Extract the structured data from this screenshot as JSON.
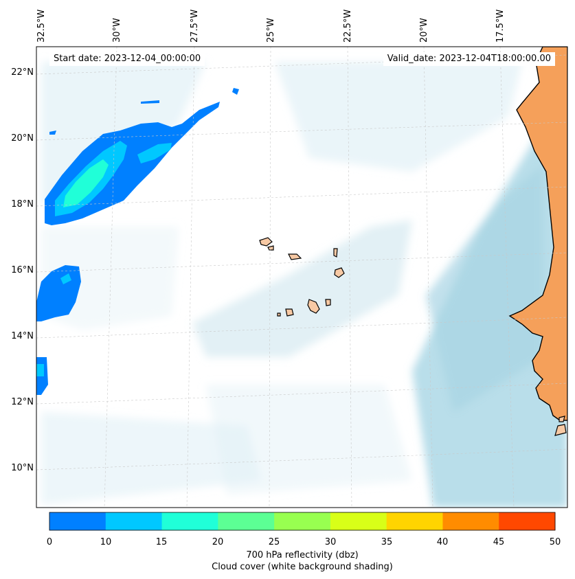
{
  "map": {
    "start_date": "Start date: 2023-12-04_00:00:00",
    "valid_date": "Valid_date: 2023-12-04T18:00:00.00",
    "lon_labels": [
      "32.5°W",
      "30°W",
      "27.5°W",
      "25°W",
      "22.5°W",
      "20°W",
      "17.5°W"
    ],
    "lat_labels": [
      "22°N",
      "20°N",
      "18°N",
      "16°N",
      "14°N",
      "12°N",
      "10°N"
    ],
    "colors": {
      "land": "#f5a05a",
      "cloud": "#add8e6",
      "refl_0_10": "#0080ff",
      "refl_10_15": "#00c8ff",
      "refl_15_20": "#20ffd8"
    }
  },
  "colorbar": {
    "ticks": [
      "0",
      "10",
      "15",
      "20",
      "25",
      "30",
      "35",
      "40",
      "45",
      "50"
    ],
    "colors": [
      "#0080ff",
      "#00c8ff",
      "#20ffd8",
      "#5cff94",
      "#98ff50",
      "#d8ff18",
      "#ffd400",
      "#ff8c00",
      "#ff4800"
    ],
    "label": "700 hPa reflectivity (dbz)",
    "sublabel": "Cloud cover (white background shading)"
  }
}
